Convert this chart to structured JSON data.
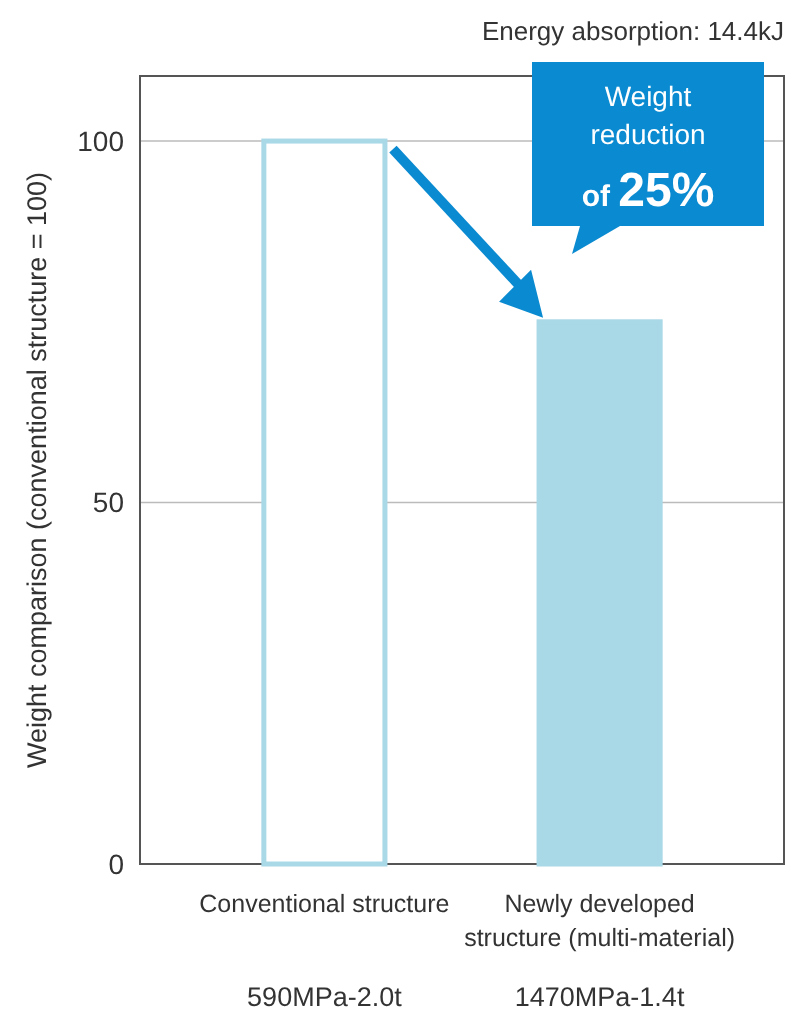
{
  "chart_data": {
    "type": "bar",
    "ylabel": "Weight comparison (conventional structure = 100)",
    "categories": [
      "Conventional structure",
      "Newly developed structure (multi-material)"
    ],
    "values": [
      100,
      75
    ],
    "colors": [
      "#ffffff",
      "#a9d8e6"
    ],
    "ylim": [
      0,
      109
    ],
    "yticks": [
      0,
      50,
      100
    ],
    "grid": "y",
    "annotations": [
      "Energy absorption: 14.4kJ",
      "Weight reduction of 25%",
      "590MPa-2.0t",
      "1470MPa-1.4t"
    ]
  }
}
